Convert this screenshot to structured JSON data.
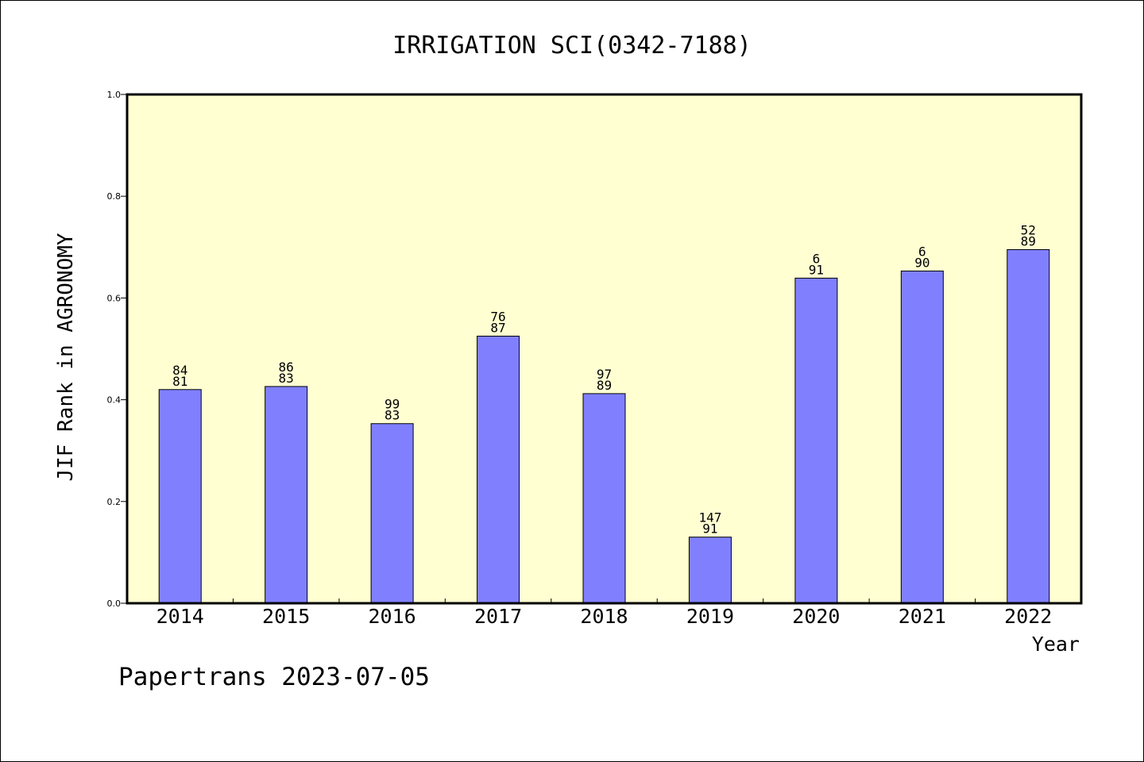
{
  "colors": {
    "plot_background": "#ffffd2",
    "bar_fill": "#8080ff",
    "bar_stroke": "#000000",
    "axis": "#000000",
    "text": "#000000"
  },
  "footer_text": "Papertrans 2023-07-05",
  "chart_data": {
    "type": "bar",
    "title": "IRRIGATION SCI(0342-7188)",
    "xlabel": "Year",
    "ylabel": "JIF Rank in AGRONOMY",
    "ylim": [
      0,
      1.0
    ],
    "yticks": [
      "0.0",
      "0.2",
      "0.4",
      "0.6",
      "0.8",
      "1.0"
    ],
    "grid": false,
    "categories": [
      "2014",
      "2015",
      "2016",
      "2017",
      "2018",
      "2019",
      "2020",
      "2021",
      "2022"
    ],
    "values": [
      0.42,
      0.426,
      0.353,
      0.525,
      0.412,
      0.13,
      0.639,
      0.653,
      0.695
    ],
    "labels_top": [
      "84",
      "86",
      "99",
      "76",
      "97",
      "147",
      "6",
      "6",
      "52"
    ],
    "labels_bottom": [
      "81",
      "83",
      "83",
      "87",
      "89",
      "91",
      "91",
      "90",
      "89"
    ]
  }
}
